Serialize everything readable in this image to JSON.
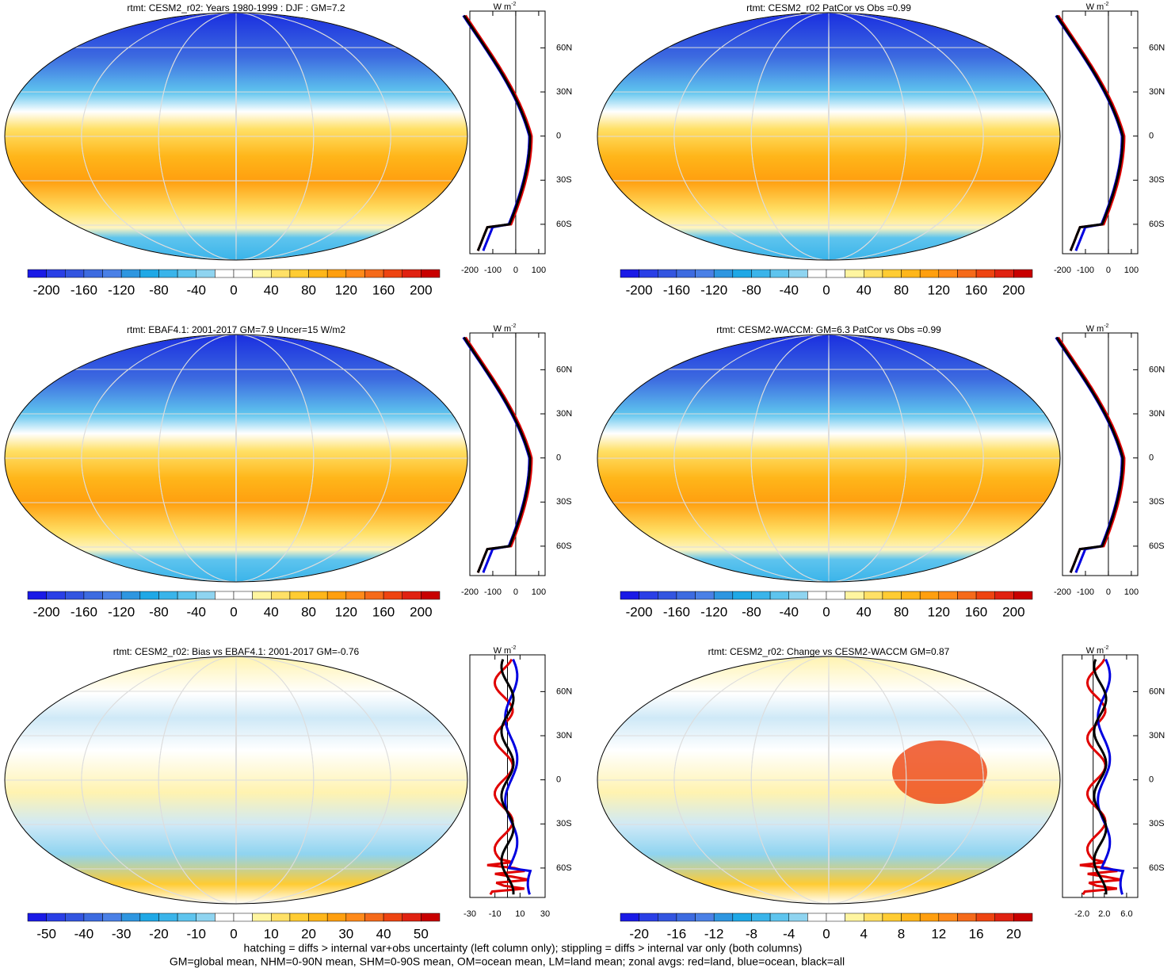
{
  "panels": [
    {
      "title": "rtmt: CESM2_r02: Years 1980-1999 : DJF : GM=7.2",
      "kind": "mean",
      "colorbar": [
        -200,
        -160,
        -120,
        -80,
        -40,
        0,
        40,
        80,
        120,
        160,
        200
      ],
      "zonal": {
        "unit": "W m",
        "unit_exp": "-2",
        "xlim": [
          -200,
          128
        ],
        "xticks": [
          -200,
          -100,
          0,
          100
        ],
        "ylim": [
          -80,
          85
        ],
        "yticks": [
          {
            "value": 60,
            "label": "60N"
          },
          {
            "value": 30,
            "label": "30N"
          },
          0,
          {
            "value": -30,
            "label": "30S"
          },
          {
            "value": -60,
            "label": "60S"
          }
        ]
      }
    },
    {
      "title": "rtmt: CESM2_r02 PatCor vs Obs =0.99",
      "kind": "mean",
      "colorbar": [
        -200,
        -160,
        -120,
        -80,
        -40,
        0,
        40,
        80,
        120,
        160,
        200
      ],
      "zonal": {
        "unit": "W m",
        "unit_exp": "-2",
        "xlim": [
          -200,
          128
        ],
        "xticks": [
          -200,
          -100,
          0,
          100
        ],
        "ylim": [
          -80,
          85
        ],
        "yticks": [
          {
            "value": 60,
            "label": "60N"
          },
          {
            "value": 30,
            "label": "30N"
          },
          0,
          {
            "value": -30,
            "label": "30S"
          },
          {
            "value": -60,
            "label": "60S"
          }
        ]
      }
    },
    {
      "title": "rtmt: EBAF4.1: 2001-2017 GM=7.9 Uncer=15 W/m2",
      "kind": "mean",
      "colorbar": [
        -200,
        -160,
        -120,
        -80,
        -40,
        0,
        40,
        80,
        120,
        160,
        200
      ],
      "zonal": {
        "unit": "W m",
        "unit_exp": "-2",
        "xlim": [
          -200,
          128
        ],
        "xticks": [
          -200,
          -100,
          0,
          100
        ],
        "ylim": [
          -80,
          85
        ],
        "yticks": [
          {
            "value": 60,
            "label": "60N"
          },
          {
            "value": 30,
            "label": "30N"
          },
          0,
          {
            "value": -30,
            "label": "30S"
          },
          {
            "value": -60,
            "label": "60S"
          }
        ]
      }
    },
    {
      "title": "rtmt: CESM2-WACCM: GM=6.3 PatCor vs Obs =0.99",
      "kind": "mean",
      "colorbar": [
        -200,
        -160,
        -120,
        -80,
        -40,
        0,
        40,
        80,
        120,
        160,
        200
      ],
      "zonal": {
        "unit": "W m",
        "unit_exp": "-2",
        "xlim": [
          -200,
          128
        ],
        "xticks": [
          -200,
          -100,
          0,
          100
        ],
        "ylim": [
          -80,
          85
        ],
        "yticks": [
          {
            "value": 60,
            "label": "60N"
          },
          {
            "value": 30,
            "label": "30N"
          },
          0,
          {
            "value": -30,
            "label": "30S"
          },
          {
            "value": -60,
            "label": "60S"
          }
        ]
      }
    },
    {
      "title": "rtmt: CESM2_r02: Bias vs EBAF4.1: 2001-2017 GM=-0.76",
      "kind": "diff",
      "colorbar": [
        -50,
        -40,
        -30,
        -20,
        -10,
        0,
        10,
        20,
        30,
        40,
        50
      ],
      "zonal": {
        "unit": "W m",
        "unit_exp": "-2",
        "xlim": [
          -30,
          30
        ],
        "xticks": [
          -30,
          -10,
          10,
          30
        ],
        "ylim": [
          -80,
          85
        ],
        "yticks": [
          {
            "value": 60,
            "label": "60N"
          },
          {
            "value": 30,
            "label": "30N"
          },
          0,
          {
            "value": -30,
            "label": "30S"
          },
          {
            "value": -60,
            "label": "60S"
          }
        ]
      }
    },
    {
      "title": "rtmt: CESM2_r02: Change vs CESM2-WACCM GM=0.87",
      "kind": "diff",
      "colorbar": [
        -20,
        -16,
        -12,
        -8,
        -4,
        0,
        4,
        8,
        12,
        16,
        20
      ],
      "zonal": {
        "unit": "W m",
        "unit_exp": "-2",
        "xlim": [
          -5.5,
          8
        ],
        "xticks": [
          {
            "value": -2,
            "label": "-2.0"
          },
          {
            "value": 2,
            "label": "2.0"
          },
          {
            "value": 6,
            "label": "6.0"
          }
        ],
        "ylim": [
          -80,
          85
        ],
        "yticks": [
          {
            "value": 60,
            "label": "60N"
          },
          {
            "value": 30,
            "label": "30N"
          },
          0,
          {
            "value": -30,
            "label": "30S"
          },
          {
            "value": -60,
            "label": "60S"
          }
        ]
      }
    }
  ],
  "footer": [
    "hatching = diffs > internal var+obs uncertainty (left column only); stippling = diffs > internal var only (both columns)",
    "GM=global mean, NHM=0-90N mean, SHM=0-90S mean, OM=ocean mean, LM=land mean; zonal avgs: red=land, blue=ocean, black=all"
  ]
}
